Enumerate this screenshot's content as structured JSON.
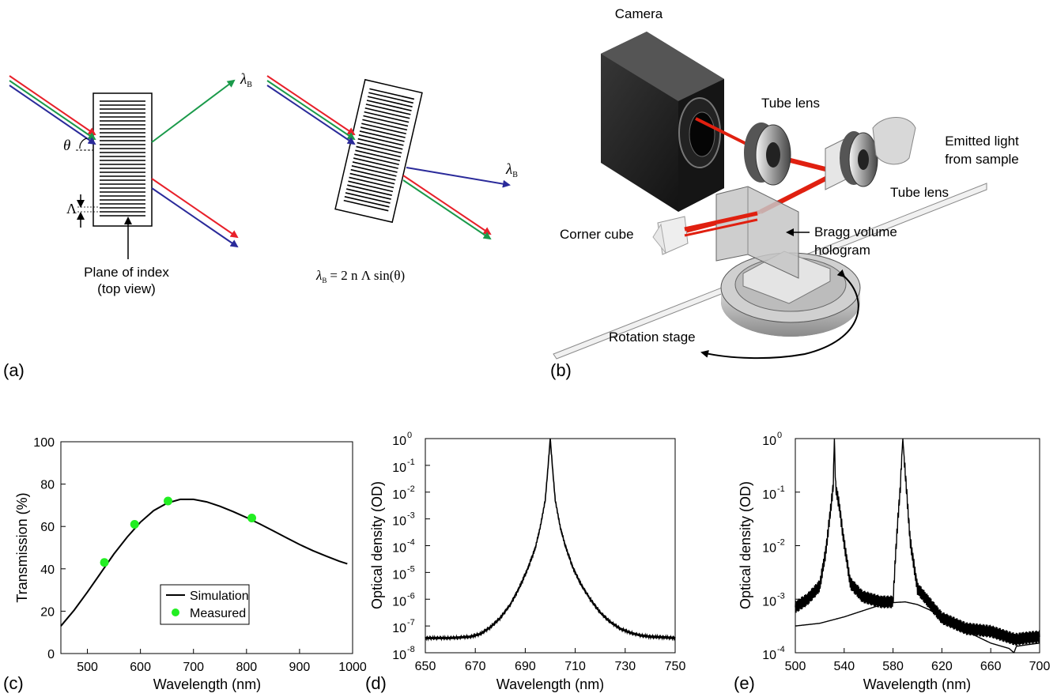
{
  "panel_labels": {
    "a": "(a)",
    "b": "(b)",
    "c": "(c)",
    "d": "(d)",
    "e": "(e)"
  },
  "panel_a": {
    "lambda_b_symbol": "λ",
    "lambda_b_sub": "B",
    "theta_symbol": "θ",
    "period_symbol": "Λ",
    "plane_caption_line1": "Plane of index",
    "plane_caption_line2": "(top view)",
    "equation_lhs": "λ",
    "equation_sub": "B",
    "equation_rhs": "= 2 n Λ sin(θ)",
    "ray_colors": {
      "red": "#e8202a",
      "green": "#1a9a4a",
      "blue": "#2a2a9a"
    }
  },
  "panel_b": {
    "labels": {
      "camera": "Camera",
      "tube_lens_top": "Tube lens",
      "emitted_line1": "Emitted light",
      "emitted_line2": "from sample",
      "tube_lens_right": "Tube lens",
      "corner_cube": "Corner cube",
      "bragg_line1": "Bragg volume",
      "bragg_line2": "hologram",
      "rotation_stage": "Rotation stage"
    },
    "beam_color": "#e02010"
  },
  "chart_data": [
    {
      "type": "line",
      "panel": "c",
      "xlabel": "Wavelength (nm)",
      "ylabel": "Transmission (%)",
      "xlim": [
        450,
        1000
      ],
      "ylim": [
        0,
        100
      ],
      "xticks": [
        "500",
        "600",
        "700",
        "800",
        "900",
        "1000"
      ],
      "yticks": [
        "0",
        "20",
        "40",
        "60",
        "80",
        "100"
      ],
      "legend_position": "center",
      "series": [
        {
          "name": "Simulation",
          "kind": "line",
          "color": "#000000",
          "x": [
            450,
            475,
            500,
            525,
            550,
            575,
            600,
            625,
            650,
            675,
            700,
            725,
            750,
            775,
            800,
            825,
            850,
            875,
            900,
            925,
            950,
            975,
            990
          ],
          "y": [
            13,
            20.5,
            29,
            38,
            47,
            55,
            62,
            67.5,
            71,
            72.8,
            72.8,
            71.6,
            69.5,
            67,
            64.2,
            61.2,
            58,
            54.7,
            51.5,
            48.6,
            46,
            43.6,
            42.4
          ]
        },
        {
          "name": "Measured",
          "kind": "scatter",
          "color": "#22ee22",
          "x": [
            532,
            589,
            652,
            810
          ],
          "y": [
            43,
            61,
            72,
            64
          ]
        }
      ]
    },
    {
      "type": "line",
      "panel": "d",
      "xlabel": "Wavelength (nm)",
      "ylabel": "Optical density (OD)",
      "xlim": [
        650,
        750
      ],
      "ylim_log10": [
        -8,
        0
      ],
      "yscale": "log",
      "xticks": [
        "650",
        "670",
        "690",
        "710",
        "730",
        "750"
      ],
      "yticks": [
        "10",
        "10",
        "10",
        "10",
        "10",
        "10",
        "10",
        "10",
        "10"
      ],
      "ytick_exponents": [
        "-8",
        "-7",
        "-6",
        "-5",
        "-4",
        "-3",
        "-2",
        "-1",
        "0"
      ],
      "series": [
        {
          "kind": "line",
          "color": "#000000",
          "x": [
            650,
            660,
            668,
            672,
            676,
            680,
            684,
            688,
            691,
            694,
            696,
            698,
            699,
            700,
            701,
            702,
            704,
            706,
            709,
            712,
            716,
            720,
            724,
            728,
            732,
            736,
            740,
            745,
            750
          ],
          "log10_y": [
            -7.45,
            -7.45,
            -7.4,
            -7.3,
            -7.05,
            -6.7,
            -6.2,
            -5.5,
            -4.85,
            -4.1,
            -3.3,
            -2.3,
            -1.2,
            0,
            -1.2,
            -2.3,
            -3.3,
            -4.0,
            -4.8,
            -5.4,
            -6.0,
            -6.5,
            -6.85,
            -7.1,
            -7.25,
            -7.35,
            -7.4,
            -7.42,
            -7.45
          ]
        }
      ]
    },
    {
      "type": "line",
      "panel": "e",
      "xlabel": "Wavelength (nm)",
      "ylabel": "Optical density (OD)",
      "xlim": [
        500,
        700
      ],
      "ylim_log10": [
        -4,
        0
      ],
      "yscale": "log",
      "xticks": [
        "500",
        "540",
        "580",
        "620",
        "660",
        "700"
      ],
      "yticks": [
        "10",
        "10",
        "10",
        "10",
        "10"
      ],
      "ytick_exponents": [
        "-4",
        "-3",
        "-2",
        "-1",
        "0"
      ],
      "series": [
        {
          "kind": "line",
          "color": "#000000",
          "x": [
            500,
            510,
            520,
            525,
            528,
            531,
            532,
            533,
            536,
            539,
            545,
            555,
            570,
            580,
            582,
            584,
            586,
            587,
            588,
            591,
            594,
            600,
            620,
            640,
            660,
            680,
            690,
            700
          ],
          "log10_y": [
            -3.15,
            -3.0,
            -2.75,
            -2.1,
            -1.5,
            -0.9,
            0,
            -0.9,
            -1.25,
            -1.8,
            -2.7,
            -2.95,
            -3.05,
            -3.05,
            -2.2,
            -1.5,
            -0.9,
            -0.4,
            0,
            -0.95,
            -1.9,
            -2.8,
            -3.35,
            -3.55,
            -3.6,
            -3.75,
            -3.72,
            -3.7
          ]
        },
        {
          "kind": "line",
          "color": "#000000",
          "x": [
            500,
            520,
            540,
            560,
            575,
            590,
            600,
            610,
            620,
            640,
            660,
            675,
            679,
            681,
            690,
            700
          ],
          "log10_y": [
            -3.5,
            -3.45,
            -3.33,
            -3.18,
            -3.07,
            -3.05,
            -3.1,
            -3.2,
            -3.35,
            -3.6,
            -3.82,
            -3.92,
            -4.0,
            -3.88,
            -3.85,
            -3.82
          ]
        }
      ]
    }
  ]
}
